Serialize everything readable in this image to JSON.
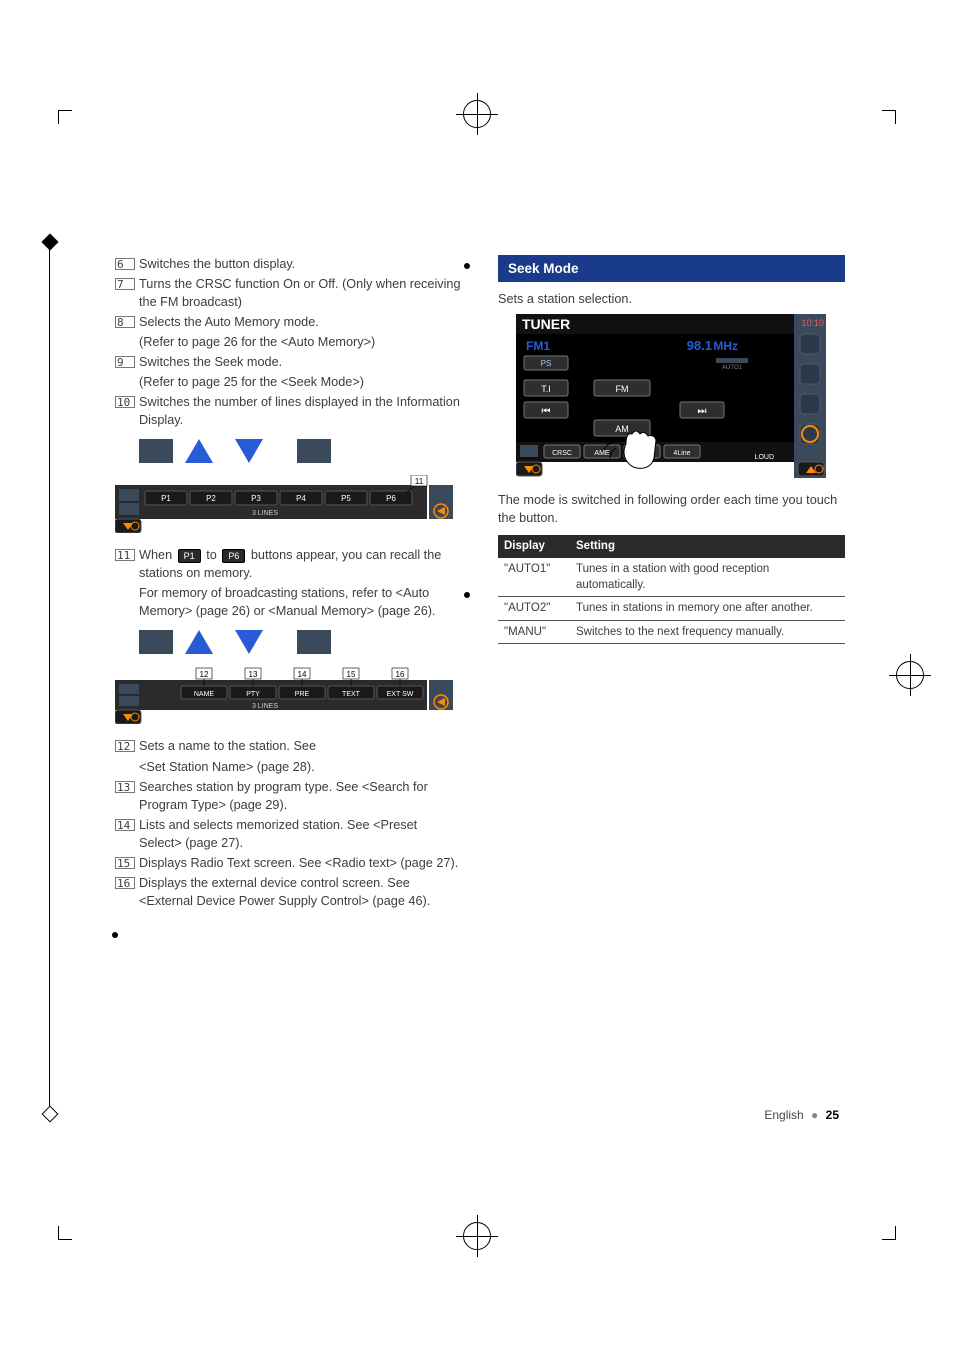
{
  "left_col": {
    "items": [
      {
        "num": "6",
        "lines": [
          "Switches the button display."
        ]
      },
      {
        "num": "7",
        "lines": [
          "Turns the CRSC function On or Off. (Only when receiving the FM broadcast)"
        ]
      },
      {
        "num": "8",
        "lines": [
          "Selects the Auto Memory mode.",
          "(Refer to page 26 for the <Auto Memory>)"
        ]
      },
      {
        "num": "9",
        "lines": [
          "Switches the Seek mode.",
          "(Refer to page 25 for the <Seek Mode>)"
        ]
      },
      {
        "num": "10",
        "lines": [
          "Switches the number of lines displayed in the Information Display."
        ]
      }
    ],
    "strip1": {
      "panel_bg": "#2b2b2b",
      "accent": "#ff8a00",
      "indicator_num": "11",
      "preset_labels": [
        "P1",
        "P2",
        "P3",
        "P4",
        "P5",
        "P6"
      ],
      "info_label": "3 LINES"
    },
    "item11_pre": "When ",
    "item11_btn1": "P1",
    "item11_mid": " to ",
    "item11_btn2": "P6",
    "item11_post": " buttons appear, you can recall the stations on memory.",
    "item11_lines": [
      "For memory of broadcasting stations, refer to <Auto Memory> (page 26) or <Manual Memory> (page 26)."
    ],
    "strip2": {
      "panel_bg": "#2b2b2b",
      "accent": "#ff8a00",
      "btn_labels": [
        "NAME",
        "PTY",
        "PRE",
        "TEXT",
        "EXT SW"
      ],
      "btn_nums": [
        "12",
        "13",
        "14",
        "15",
        "16"
      ],
      "info_label": "3 LINES"
    },
    "items2": [
      {
        "num": "12",
        "lines": [
          "Sets a name to the station. See",
          "<Set Station Name> (page 28)."
        ]
      },
      {
        "num": "13",
        "lines": [
          "Searches station by program type. See <Search for Program Type> (page 29)."
        ]
      },
      {
        "num": "14",
        "lines": [
          "Lists and selects memorized station. See <Preset Select> (page 27)."
        ]
      },
      {
        "num": "15",
        "lines": [
          "Displays Radio Text screen. See <Radio text> (page 27)."
        ]
      },
      {
        "num": "16",
        "lines": [
          "Displays the external device control screen. See <External Device Power Supply Control> (page 46)."
        ]
      }
    ]
  },
  "right_col": {
    "heading": "Seek Mode",
    "lead": "Sets a station selection.",
    "tuner": {
      "title": "TUNER",
      "band": "FM1",
      "freq": "98.1",
      "unit": "MHz",
      "time": "10:10",
      "ps": "PS",
      "ti": "T.I",
      "fm": "FM",
      "am": "AM",
      "bottom_bar": [
        "CRSC",
        "AME",
        "",
        "4Line"
      ],
      "loud": "LOUD",
      "bg": "#000000",
      "blue": "#2a5bd6",
      "text": "#ffffff",
      "btn_bg": "#2e2e2e",
      "btn_border": "#777"
    },
    "caption": "The mode is switched in following order each time you touch the button.",
    "table": {
      "head": [
        "Display",
        "Setting"
      ],
      "rows": [
        [
          "\"AUTO1\"",
          "Tunes in a station with good reception automatically."
        ],
        [
          "\"AUTO2\"",
          "Tunes in stations in memory one after another."
        ],
        [
          "\"MANU\"",
          "Switches to the next frequency manually."
        ]
      ]
    }
  },
  "footer": {
    "lang": "English",
    "page": "25"
  }
}
